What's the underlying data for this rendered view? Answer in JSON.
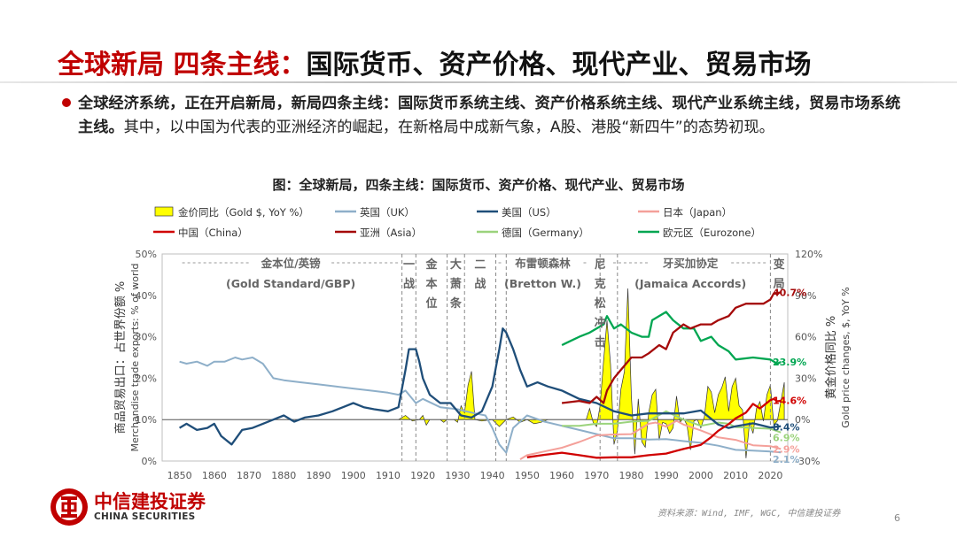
{
  "slide": {
    "title_red": "全球新局 四条主线：",
    "title_black": "国际货币、资产价格、现代产业、贸易市场",
    "bullet_bold": "全球经济系统，正在开启新局，新局四条主线：国际货币系统主线、资产价格系统主线、现代产业系统主线，贸易市场系统主线。",
    "bullet_rest": "其中，以中国为代表的亚洲经济的崛起，在新格局中成新气象，A股、港股“新四牛”的态势初现。",
    "figure_title": "图：全球新局，四条主线：国际货币、资产价格、现代产业、贸易市场",
    "source": "资料来源：Wind, IMF, WGC, 中信建投证券",
    "page_number": "6",
    "logo_cn": "中信建投证券",
    "logo_en": "CHINA SECURITIES"
  },
  "chart_data": {
    "type": "line",
    "xlim": [
      1845,
      2025
    ],
    "x_ticks": [
      1850,
      1860,
      1870,
      1880,
      1890,
      1900,
      1910,
      1920,
      1930,
      1940,
      1950,
      1960,
      1970,
      1980,
      1990,
      2000,
      2010,
      2020
    ],
    "left_axis": {
      "label_cn": "商品贸易出口：占世界份额 %",
      "label_en": "Merchandise trade exports: % of world",
      "ylim": [
        0,
        50
      ],
      "ticks": [
        "0%",
        "10%",
        "20%",
        "30%",
        "40%",
        "50%"
      ]
    },
    "right_axis": {
      "label_cn": "黄金价格同比 %",
      "label_en": "Gold price changes, $, YoY %",
      "ylim": [
        -30,
        120
      ],
      "ticks": [
        "-30%",
        "0%",
        "30%",
        "60%",
        "90%",
        "120%"
      ]
    },
    "legend": [
      {
        "key": "gold",
        "label": "金价同比（Gold $, YoY %）",
        "color": "#ffff00"
      },
      {
        "key": "uk",
        "label": "英国（UK）",
        "color": "#8eafc9"
      },
      {
        "key": "us",
        "label": "美国（US）",
        "color": "#1f4e79"
      },
      {
        "key": "japan",
        "label": "日本（Japan）",
        "color": "#f4a09a"
      },
      {
        "key": "china",
        "label": "中国（China）",
        "color": "#d00000"
      },
      {
        "key": "asia",
        "label": "亚洲（Asia）",
        "color": "#a50a0a"
      },
      {
        "key": "germany",
        "label": "德国（Germany）",
        "color": "#9bd37c"
      },
      {
        "key": "eurozone",
        "label": "欧元区（Eurozone）",
        "color": "#00a651"
      }
    ],
    "eras": [
      {
        "label": "金本位/英镑",
        "sub": "(Gold Standard/GBP)",
        "from": 1850,
        "to": 1914
      },
      {
        "label": "一战",
        "from": 1914,
        "to": 1918
      },
      {
        "label": "金本位",
        "from": 1918,
        "to": 1927
      },
      {
        "label": "大萧条",
        "from": 1927,
        "to": 1932
      },
      {
        "label": "二战",
        "from": 1932,
        "to": 1941
      },
      {
        "label": "布雷顿森林",
        "sub": "(Bretton W.)",
        "from": 1941,
        "to": 1968
      },
      {
        "label": "尼克松冲击",
        "from": 1968,
        "to": 1974
      },
      {
        "label": "牙买加协定",
        "sub": "(Jamaica Accords)",
        "from": 1974,
        "to": 2020
      },
      {
        "label": "变局",
        "from": 2020,
        "to": 2025
      }
    ],
    "era_lines": [
      1914,
      1918,
      1927,
      1932,
      1941,
      1944,
      1971,
      1976,
      2020
    ],
    "end_labels": [
      {
        "series": "asia",
        "text": "40.7%",
        "value": 40.7
      },
      {
        "series": "eurozone",
        "text": "23.9%",
        "value": 23.9
      },
      {
        "series": "china",
        "text": "14.6%",
        "value": 14.6
      },
      {
        "series": "us",
        "text": "8.4%",
        "value": 8.4
      },
      {
        "series": "germany",
        "text": "6.9%",
        "value": 6.9
      },
      {
        "series": "japan",
        "text": "2.9%",
        "value": 2.9
      },
      {
        "series": "uk",
        "text": "2.1%",
        "value": 2.1
      }
    ],
    "series": {
      "uk": [
        [
          1850,
          24
        ],
        [
          1852,
          23.5
        ],
        [
          1855,
          24
        ],
        [
          1858,
          23
        ],
        [
          1860,
          24
        ],
        [
          1863,
          24
        ],
        [
          1866,
          25
        ],
        [
          1868,
          24.5
        ],
        [
          1871,
          25
        ],
        [
          1874,
          23.5
        ],
        [
          1877,
          20
        ],
        [
          1880,
          19.5
        ],
        [
          1885,
          19
        ],
        [
          1890,
          18.5
        ],
        [
          1895,
          18
        ],
        [
          1900,
          17.5
        ],
        [
          1905,
          17
        ],
        [
          1910,
          16.5
        ],
        [
          1913,
          16
        ],
        [
          1915,
          17
        ],
        [
          1918,
          14
        ],
        [
          1920,
          15
        ],
        [
          1925,
          13
        ],
        [
          1930,
          12.5
        ],
        [
          1935,
          11.5
        ],
        [
          1938,
          11
        ],
        [
          1940,
          8
        ],
        [
          1942,
          4
        ],
        [
          1944,
          2
        ],
        [
          1946,
          8
        ],
        [
          1950,
          11
        ],
        [
          1955,
          9.5
        ],
        [
          1960,
          8.5
        ],
        [
          1965,
          7.5
        ],
        [
          1970,
          6.5
        ],
        [
          1975,
          5.5
        ],
        [
          1980,
          5.5
        ],
        [
          1985,
          5.2
        ],
        [
          1990,
          5.3
        ],
        [
          1995,
          4.8
        ],
        [
          2000,
          4.4
        ],
        [
          2005,
          3.7
        ],
        [
          2010,
          2.7
        ],
        [
          2015,
          2.5
        ],
        [
          2020,
          2.3
        ],
        [
          2023,
          2.1
        ]
      ],
      "us": [
        [
          1850,
          8
        ],
        [
          1852,
          9
        ],
        [
          1855,
          7.5
        ],
        [
          1858,
          8
        ],
        [
          1860,
          9
        ],
        [
          1862,
          6
        ],
        [
          1865,
          4
        ],
        [
          1868,
          7.5
        ],
        [
          1871,
          8
        ],
        [
          1874,
          9
        ],
        [
          1877,
          10
        ],
        [
          1880,
          11
        ],
        [
          1883,
          9.5
        ],
        [
          1886,
          10.5
        ],
        [
          1890,
          11
        ],
        [
          1894,
          12
        ],
        [
          1897,
          13
        ],
        [
          1900,
          14
        ],
        [
          1903,
          13
        ],
        [
          1906,
          12.5
        ],
        [
          1910,
          12
        ],
        [
          1913,
          13
        ],
        [
          1915,
          22
        ],
        [
          1916,
          27
        ],
        [
          1918,
          27
        ],
        [
          1919,
          24
        ],
        [
          1920,
          20
        ],
        [
          1922,
          16
        ],
        [
          1925,
          14
        ],
        [
          1928,
          14
        ],
        [
          1931,
          11
        ],
        [
          1934,
          10.5
        ],
        [
          1937,
          12
        ],
        [
          1940,
          18
        ],
        [
          1942,
          27
        ],
        [
          1943,
          32
        ],
        [
          1944,
          31
        ],
        [
          1946,
          27
        ],
        [
          1948,
          22
        ],
        [
          1950,
          18
        ],
        [
          1953,
          19
        ],
        [
          1956,
          18
        ],
        [
          1960,
          17
        ],
        [
          1965,
          15
        ],
        [
          1970,
          14
        ],
        [
          1975,
          12
        ],
        [
          1980,
          11
        ],
        [
          1985,
          11.5
        ],
        [
          1990,
          11.5
        ],
        [
          1995,
          11.5
        ],
        [
          2000,
          12.2
        ],
        [
          2005,
          8.8
        ],
        [
          2008,
          8
        ],
        [
          2010,
          8.4
        ],
        [
          2015,
          9.1
        ],
        [
          2020,
          8.1
        ],
        [
          2023,
          8.4
        ]
      ],
      "japan": [
        [
          1948,
          0.4
        ],
        [
          1950,
          1.4
        ],
        [
          1955,
          2.3
        ],
        [
          1960,
          3.2
        ],
        [
          1965,
          4.6
        ],
        [
          1970,
          6.2
        ],
        [
          1975,
          6.4
        ],
        [
          1980,
          6.5
        ],
        [
          1985,
          9
        ],
        [
          1987,
          9.3
        ],
        [
          1990,
          8.3
        ],
        [
          1993,
          9.7
        ],
        [
          1995,
          8.8
        ],
        [
          2000,
          7.4
        ],
        [
          2005,
          5.7
        ],
        [
          2010,
          5.1
        ],
        [
          2015,
          3.8
        ],
        [
          2020,
          3.6
        ],
        [
          2023,
          2.9
        ]
      ],
      "germany": [
        [
          1960,
          8.5
        ],
        [
          1965,
          8.5
        ],
        [
          1970,
          9
        ],
        [
          1975,
          9
        ],
        [
          1980,
          9.5
        ],
        [
          1985,
          9.7
        ],
        [
          1990,
          12
        ],
        [
          1995,
          10
        ],
        [
          2000,
          8.5
        ],
        [
          2005,
          9.3
        ],
        [
          2008,
          9
        ],
        [
          2010,
          8.2
        ],
        [
          2015,
          8
        ],
        [
          2020,
          7.8
        ],
        [
          2023,
          6.9
        ]
      ],
      "eurozone": [
        [
          1960,
          28
        ],
        [
          1965,
          30
        ],
        [
          1968,
          31
        ],
        [
          1970,
          32
        ],
        [
          1972,
          33
        ],
        [
          1973,
          35
        ],
        [
          1975,
          32
        ],
        [
          1977,
          33
        ],
        [
          1980,
          31
        ],
        [
          1983,
          30
        ],
        [
          1985,
          30
        ],
        [
          1986,
          34
        ],
        [
          1990,
          36
        ],
        [
          1992,
          34
        ],
        [
          1995,
          32
        ],
        [
          1998,
          32
        ],
        [
          2000,
          29
        ],
        [
          2003,
          30
        ],
        [
          2005,
          28
        ],
        [
          2008,
          26.5
        ],
        [
          2010,
          24.5
        ],
        [
          2015,
          25
        ],
        [
          2020,
          24.5
        ],
        [
          2022,
          23.5
        ],
        [
          2023,
          23.9
        ]
      ],
      "china": [
        [
          1950,
          0.9
        ],
        [
          1955,
          1.5
        ],
        [
          1960,
          2
        ],
        [
          1965,
          1.4
        ],
        [
          1970,
          0.8
        ],
        [
          1975,
          0.9
        ],
        [
          1980,
          0.9
        ],
        [
          1985,
          1.4
        ],
        [
          1990,
          1.8
        ],
        [
          1995,
          2.9
        ],
        [
          2000,
          3.9
        ],
        [
          2003,
          5.8
        ],
        [
          2005,
          7.3
        ],
        [
          2008,
          8.9
        ],
        [
          2010,
          10.3
        ],
        [
          2013,
          11.7
        ],
        [
          2015,
          13.8
        ],
        [
          2017,
          12.7
        ],
        [
          2020,
          14.7
        ],
        [
          2021,
          15
        ],
        [
          2022,
          14.4
        ],
        [
          2023,
          14.6
        ]
      ],
      "asia": [
        [
          1960,
          14
        ],
        [
          1965,
          14.5
        ],
        [
          1968,
          14
        ],
        [
          1970,
          15.5
        ],
        [
          1972,
          14
        ],
        [
          1973,
          17
        ],
        [
          1975,
          20
        ],
        [
          1977,
          22
        ],
        [
          1980,
          25
        ],
        [
          1983,
          25
        ],
        [
          1985,
          26
        ],
        [
          1988,
          28
        ],
        [
          1990,
          27
        ],
        [
          1992,
          31
        ],
        [
          1995,
          33
        ],
        [
          1997,
          32
        ],
        [
          2000,
          33
        ],
        [
          2003,
          33
        ],
        [
          2005,
          34
        ],
        [
          2008,
          35
        ],
        [
          2010,
          37
        ],
        [
          2013,
          38
        ],
        [
          2015,
          38
        ],
        [
          2018,
          38
        ],
        [
          2020,
          39
        ],
        [
          2021,
          40.5
        ],
        [
          2023,
          40.7
        ]
      ]
    },
    "gold_yoy": [
      [
        1850,
        0
      ],
      [
        1913,
        0
      ],
      [
        1915,
        3
      ],
      [
        1917,
        -1
      ],
      [
        1919,
        0
      ],
      [
        1920,
        3
      ],
      [
        1921,
        -4
      ],
      [
        1922,
        0
      ],
      [
        1925,
        0
      ],
      [
        1926,
        -2
      ],
      [
        1927,
        0
      ],
      [
        1929,
        0
      ],
      [
        1930,
        -2
      ],
      [
        1931,
        10
      ],
      [
        1932,
        5
      ],
      [
        1933,
        25
      ],
      [
        1934,
        35
      ],
      [
        1935,
        0
      ],
      [
        1937,
        -1
      ],
      [
        1940,
        0
      ],
      [
        1942,
        -5
      ],
      [
        1944,
        0
      ],
      [
        1946,
        2
      ],
      [
        1948,
        -2
      ],
      [
        1950,
        0
      ],
      [
        1952,
        -3
      ],
      [
        1954,
        -2
      ],
      [
        1956,
        0
      ],
      [
        1960,
        0
      ],
      [
        1965,
        0
      ],
      [
        1967,
        0
      ],
      [
        1968,
        8
      ],
      [
        1969,
        -2
      ],
      [
        1970,
        -5
      ],
      [
        1971,
        10
      ],
      [
        1972,
        42
      ],
      [
        1973,
        72
      ],
      [
        1974,
        40
      ],
      [
        1975,
        -18
      ],
      [
        1976,
        -8
      ],
      [
        1977,
        22
      ],
      [
        1978,
        35
      ],
      [
        1979,
        95
      ],
      [
        1980,
        17
      ],
      [
        1981,
        -25
      ],
      [
        1982,
        15
      ],
      [
        1983,
        -16
      ],
      [
        1984,
        -20
      ],
      [
        1985,
        5
      ],
      [
        1986,
        18
      ],
      [
        1987,
        22
      ],
      [
        1988,
        -15
      ],
      [
        1989,
        -2
      ],
      [
        1990,
        -3
      ],
      [
        1991,
        -10
      ],
      [
        1992,
        -6
      ],
      [
        1993,
        17
      ],
      [
        1994,
        -2
      ],
      [
        1995,
        1
      ],
      [
        1996,
        -4
      ],
      [
        1997,
        -22
      ],
      [
        1998,
        -1
      ],
      [
        1999,
        0
      ],
      [
        2000,
        -6
      ],
      [
        2001,
        2
      ],
      [
        2002,
        24
      ],
      [
        2003,
        20
      ],
      [
        2004,
        5
      ],
      [
        2005,
        18
      ],
      [
        2006,
        23
      ],
      [
        2007,
        31
      ],
      [
        2008,
        6
      ],
      [
        2009,
        24
      ],
      [
        2010,
        30
      ],
      [
        2011,
        10
      ],
      [
        2012,
        7
      ],
      [
        2013,
        -28
      ],
      [
        2014,
        -2
      ],
      [
        2015,
        -10
      ],
      [
        2016,
        8
      ],
      [
        2017,
        13
      ],
      [
        2018,
        -1
      ],
      [
        2019,
        18
      ],
      [
        2020,
        25
      ],
      [
        2021,
        -4
      ],
      [
        2022,
        -1
      ],
      [
        2023,
        13
      ],
      [
        2024,
        27
      ]
    ]
  }
}
